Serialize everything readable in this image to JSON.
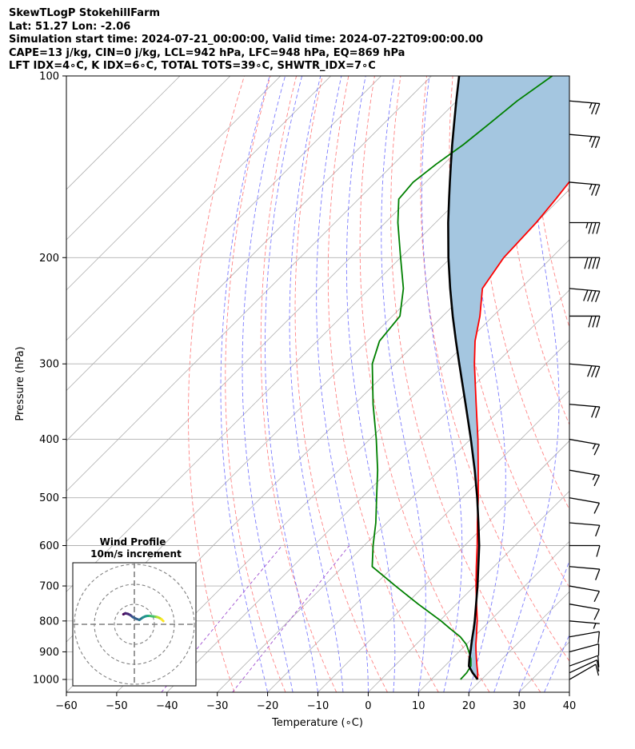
{
  "header": {
    "line1": "SkewTLogP StokehillFarm",
    "line2": "Lat: 51.27   Lon: -2.06",
    "line3": "Simulation start time: 2024-07-21_00:00:00, Valid time: 2024-07-22T09:00:00.00",
    "line4": "CAPE=13 j/kg, CIN=0 j/kg, LCL=942 hPa, LFC=948 hPa, EQ=869 hPa",
    "line5": "LFT IDX=4∘C, K IDX=6∘C, TOTAL TOTS=39∘C, SHWTR_IDX=7∘C"
  },
  "chart_data": {
    "type": "line",
    "diagram": "skew-T log-P",
    "xlabel": "Temperature (∘C)",
    "ylabel": "Pressure (hPa)",
    "xlim": [
      -60,
      40
    ],
    "ylim": [
      1050,
      100
    ],
    "y_scale": "log",
    "grid": true,
    "x_ticks": [
      -60,
      -50,
      -40,
      -30,
      -20,
      -10,
      0,
      10,
      20,
      30,
      40
    ],
    "x_tick_labels": [
      "−60",
      "−50",
      "−40",
      "−30",
      "−20",
      "−10",
      "0",
      "10",
      "20",
      "30",
      "40"
    ],
    "y_ticks": [
      1000,
      900,
      800,
      700,
      600,
      500,
      400,
      300,
      200,
      100
    ],
    "y_tick_labels": [
      "1000",
      "900",
      "800",
      "700",
      "600",
      "500",
      "400",
      "300",
      "200",
      "100"
    ],
    "series": [
      {
        "role": "temperature",
        "color": "#ff0000",
        "pressure": [
          1000,
          975,
          950,
          925,
          900,
          875,
          850,
          825,
          800,
          750,
          700,
          650,
          600,
          550,
          500,
          450,
          400,
          350,
          300,
          275,
          250,
          225,
          200,
          175,
          160,
          150,
          140,
          130,
          120,
          110,
          100
        ],
        "temperature": [
          19.2,
          17.9,
          16.4,
          14.9,
          13.4,
          11.9,
          10.5,
          9.0,
          7.5,
          4.0,
          0.3,
          -3.5,
          -7.5,
          -12.0,
          -16.8,
          -22.3,
          -28.5,
          -35.8,
          -44.2,
          -48.6,
          -52.6,
          -57.6,
          -59.5,
          -60.0,
          -60.8,
          -61.5,
          -62.3,
          -63.0,
          -63.0,
          -63.5,
          -63.8
        ]
      },
      {
        "role": "dewpoint",
        "color": "#008000",
        "pressure": [
          1000,
          975,
          950,
          925,
          900,
          875,
          850,
          825,
          800,
          750,
          700,
          650,
          600,
          550,
          500,
          450,
          400,
          350,
          300,
          275,
          250,
          225,
          200,
          175,
          160,
          150,
          140,
          130,
          120,
          110,
          100
        ],
        "temperature": [
          15.8,
          15.7,
          15.2,
          13.8,
          12.0,
          10.0,
          7.3,
          3.8,
          0.3,
          -7.6,
          -15.7,
          -24.2,
          -28.2,
          -32.2,
          -37.0,
          -42.3,
          -48.7,
          -56.3,
          -64.5,
          -67.6,
          -68.5,
          -73.3,
          -80.0,
          -87.5,
          -92.0,
          -92.5,
          -91.5,
          -90.0,
          -89.0,
          -88.0,
          -86.0
        ]
      },
      {
        "role": "parcel",
        "color": "#000000",
        "pressure": [
          1000,
          975,
          950,
          925,
          900,
          875,
          850,
          825,
          800,
          750,
          700,
          650,
          600,
          550,
          500,
          450,
          400,
          350,
          300,
          275,
          250,
          225,
          200,
          175,
          160,
          150,
          140,
          130,
          120,
          110,
          100
        ],
        "temperature": [
          19.2,
          16.9,
          14.8,
          13.5,
          12.3,
          11.0,
          9.7,
          8.4,
          7.0,
          3.9,
          0.6,
          -3.1,
          -7.1,
          -11.8,
          -17.0,
          -23.0,
          -29.9,
          -37.9,
          -47.2,
          -52.4,
          -58.0,
          -64.0,
          -70.5,
          -77.5,
          -82.0,
          -85.2,
          -88.6,
          -92.2,
          -96.0,
          -100.1,
          -104.5
        ]
      }
    ],
    "shaded_region": {
      "between": [
        "parcel",
        "temperature"
      ],
      "color": "#a4c6e0"
    },
    "reference_lines": {
      "isotherms": {
        "color": "#b0b0b0"
      },
      "dry_adiabats": {
        "color": "#ff6666",
        "style": "dashed"
      },
      "moist_adiabats": {
        "color": "#5c5cff",
        "style": "dashed"
      },
      "mixing_ratio": {
        "color": "#a050d0",
        "style": "dashed"
      }
    },
    "wind_barbs": {
      "color": "#000000",
      "levels": [
        {
          "pressure": 1000,
          "speed_kt": 10,
          "direction_deg": 240
        },
        {
          "pressure": 975,
          "speed_kt": 10,
          "direction_deg": 245
        },
        {
          "pressure": 950,
          "speed_kt": 10,
          "direction_deg": 250
        },
        {
          "pressure": 900,
          "speed_kt": 10,
          "direction_deg": 255
        },
        {
          "pressure": 850,
          "speed_kt": 10,
          "direction_deg": 260
        },
        {
          "pressure": 800,
          "speed_kt": 5,
          "direction_deg": 275
        },
        {
          "pressure": 750,
          "speed_kt": 10,
          "direction_deg": 280
        },
        {
          "pressure": 700,
          "speed_kt": 10,
          "direction_deg": 280
        },
        {
          "pressure": 650,
          "speed_kt": 10,
          "direction_deg": 275
        },
        {
          "pressure": 600,
          "speed_kt": 10,
          "direction_deg": 270
        },
        {
          "pressure": 550,
          "speed_kt": 10,
          "direction_deg": 275
        },
        {
          "pressure": 500,
          "speed_kt": 10,
          "direction_deg": 280
        },
        {
          "pressure": 450,
          "speed_kt": 15,
          "direction_deg": 280
        },
        {
          "pressure": 400,
          "speed_kt": 15,
          "direction_deg": 280
        },
        {
          "pressure": 350,
          "speed_kt": 20,
          "direction_deg": 275
        },
        {
          "pressure": 300,
          "speed_kt": 30,
          "direction_deg": 275
        },
        {
          "pressure": 250,
          "speed_kt": 30,
          "direction_deg": 270
        },
        {
          "pressure": 225,
          "speed_kt": 40,
          "direction_deg": 275
        },
        {
          "pressure": 200,
          "speed_kt": 40,
          "direction_deg": 270
        },
        {
          "pressure": 175,
          "speed_kt": 35,
          "direction_deg": 270
        },
        {
          "pressure": 150,
          "speed_kt": 25,
          "direction_deg": 275
        },
        {
          "pressure": 125,
          "speed_kt": 25,
          "direction_deg": 275
        },
        {
          "pressure": 110,
          "speed_kt": 25,
          "direction_deg": 275
        }
      ]
    },
    "inset": {
      "title_line1": "Wind Profile",
      "title_line2": "10m/s increment",
      "rings": 3,
      "ring_color": "#808080",
      "hodograph_u": [
        -5.5,
        -4.5,
        -3.2,
        -2.0,
        -0.8,
        0.8,
        2.5,
        4.2,
        5.5,
        6.5,
        7.8,
        9.0,
        10.5,
        11.5,
        12.5,
        13.5,
        14.5
      ],
      "hodograph_v": [
        5.0,
        5.5,
        5.2,
        4.6,
        3.6,
        2.8,
        2.2,
        3.4,
        4.0,
        4.2,
        4.2,
        4.0,
        3.8,
        3.6,
        3.2,
        2.6,
        1.6
      ]
    }
  }
}
